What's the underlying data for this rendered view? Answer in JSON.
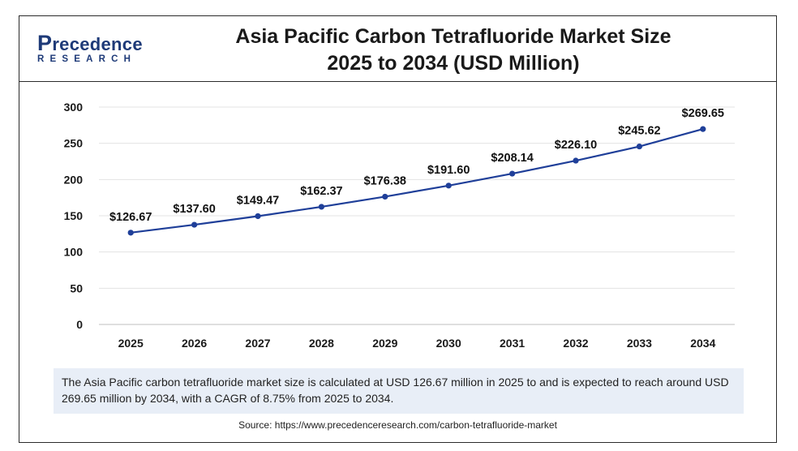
{
  "brand": {
    "logo_top": "recedence",
    "logo_initial": "P",
    "logo_bottom": "RESEARCH",
    "color": "#1e3a78"
  },
  "title_line1": "Asia Pacific Carbon Tetrafluoride Market Size",
  "title_line2": "2025 to 2034 (USD Million)",
  "chart_data": {
    "type": "line",
    "x": [
      "2025",
      "2026",
      "2027",
      "2028",
      "2029",
      "2030",
      "2031",
      "2032",
      "2033",
      "2034"
    ],
    "series": [
      {
        "values": [
          126.67,
          137.6,
          149.47,
          162.37,
          176.38,
          191.6,
          208.14,
          226.1,
          245.62,
          269.65
        ],
        "labels": [
          "$126.67",
          "$137.60",
          "$149.47",
          "$162.37",
          "$176.38",
          "$191.60",
          "$208.14",
          "$226.10",
          "$245.62",
          "$269.65"
        ],
        "color": "#1f3f99"
      }
    ],
    "yticks": [
      "0",
      "50",
      "100",
      "150",
      "200",
      "250",
      "300"
    ],
    "ylim": [
      0,
      300
    ],
    "grid": true
  },
  "note": "The Asia Pacific carbon tetrafluoride market size is calculated at USD 126.67 million in 2025 to and is expected to reach around USD 269.65 million by 2034, with a CAGR of 8.75% from 2025 to 2034.",
  "source": "Source: https://www.precedenceresearch.com/carbon-tetrafluoride-market"
}
